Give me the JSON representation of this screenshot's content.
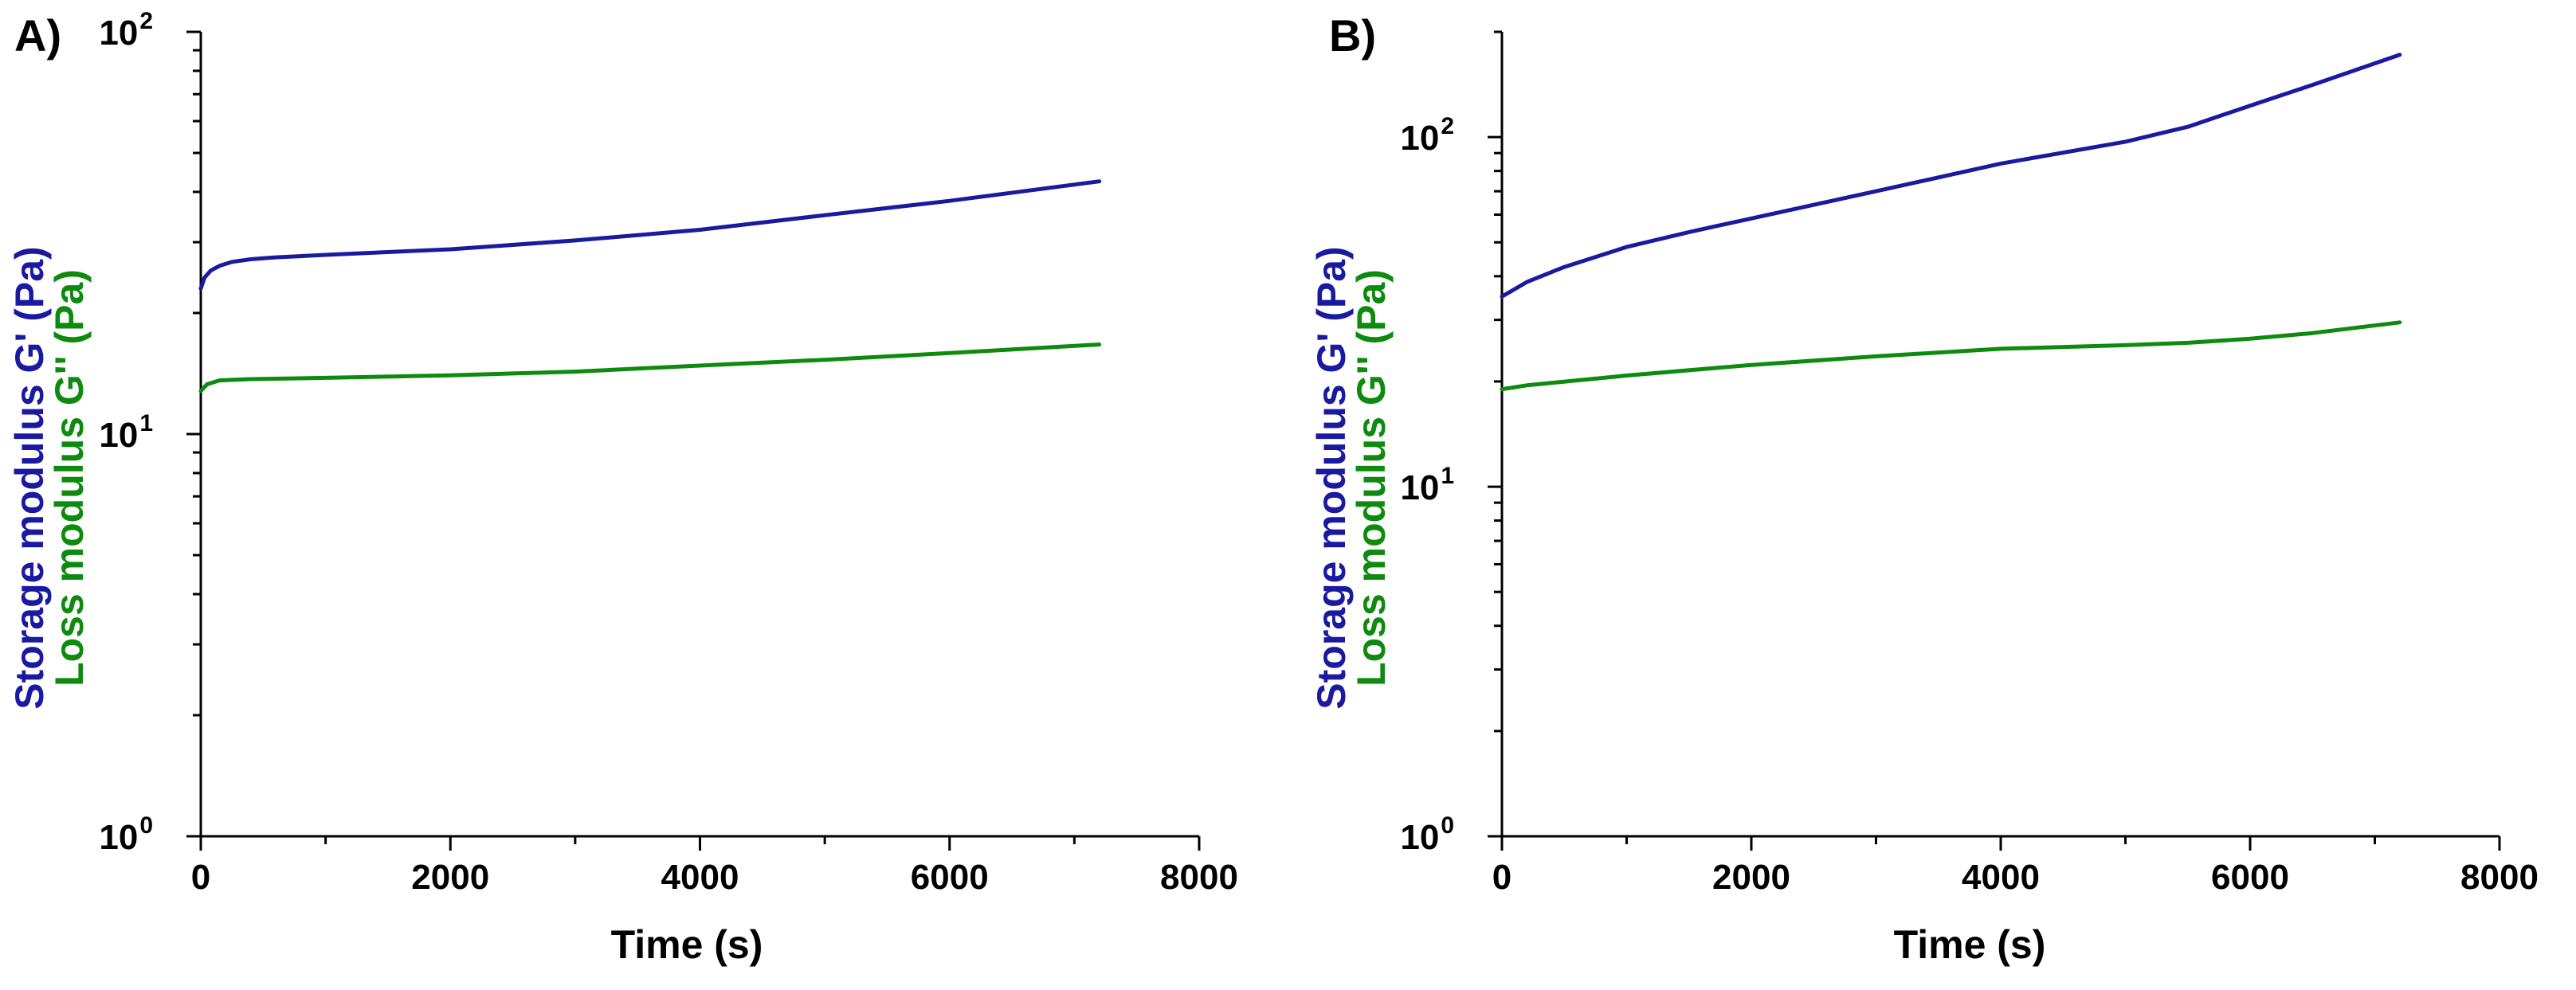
{
  "colors": {
    "storage": "#1a1aa0",
    "loss": "#0e8a0e"
  },
  "chart_data": [
    {
      "type": "line",
      "panel_label": "A)",
      "xlabel": "Time (s)",
      "ylabel_storage": "Storage modulus G' (Pa)",
      "ylabel_loss": "Loss modulus G'' (Pa)",
      "xlim": [
        0,
        8000
      ],
      "ylim": [
        1,
        100
      ],
      "yscale": "log",
      "x_ticks": [
        0,
        2000,
        4000,
        6000,
        8000
      ],
      "x_tick_labels": [
        "0",
        "2000",
        "4000",
        "6000",
        "8000"
      ],
      "y_ticks": [
        {
          "value": 1,
          "base": "10",
          "exp": "0"
        },
        {
          "value": 10,
          "base": "10",
          "exp": "1"
        },
        {
          "value": 100,
          "base": "10",
          "exp": "2"
        }
      ],
      "series": [
        {
          "name": "Storage modulus G'",
          "color_key": "storage",
          "x": [
            0,
            30,
            80,
            150,
            250,
            400,
            600,
            1000,
            2000,
            3000,
            4000,
            5000,
            6000,
            7200
          ],
          "y": [
            23,
            24.5,
            25.5,
            26.2,
            26.8,
            27.2,
            27.5,
            27.9,
            28.8,
            30.3,
            32.2,
            35,
            38,
            42.5
          ]
        },
        {
          "name": "Loss modulus G''",
          "color_key": "loss",
          "x": [
            0,
            50,
            150,
            400,
            1000,
            2000,
            3000,
            4000,
            5000,
            6000,
            7200
          ],
          "y": [
            12.8,
            13.3,
            13.6,
            13.7,
            13.8,
            14,
            14.3,
            14.8,
            15.3,
            15.9,
            16.7
          ]
        }
      ]
    },
    {
      "type": "line",
      "panel_label": "B)",
      "xlabel": "Time (s)",
      "ylabel_storage": "Storage modulus G' (Pa)",
      "ylabel_loss": "Loss modulus G'' (Pa)",
      "xlim": [
        0,
        8000
      ],
      "ylim": [
        1,
        200
      ],
      "yscale": "log",
      "x_ticks": [
        0,
        2000,
        4000,
        6000,
        8000
      ],
      "x_tick_labels": [
        "0",
        "2000",
        "4000",
        "6000",
        "8000"
      ],
      "y_ticks": [
        {
          "value": 1,
          "base": "10",
          "exp": "0"
        },
        {
          "value": 10,
          "base": "10",
          "exp": "1"
        },
        {
          "value": 100,
          "base": "10",
          "exp": "2"
        }
      ],
      "series": [
        {
          "name": "Storage modulus G'",
          "color_key": "storage",
          "x": [
            0,
            200,
            500,
            1000,
            1500,
            2000,
            3000,
            4000,
            5000,
            5500,
            6000,
            6500,
            7200
          ],
          "y": [
            35,
            38.5,
            42.5,
            48.5,
            53.5,
            58.5,
            70,
            84,
            97,
            107,
            123,
            141,
            172
          ]
        },
        {
          "name": "Loss modulus G''",
          "color_key": "loss",
          "x": [
            0,
            200,
            1000,
            2000,
            3000,
            4000,
            5000,
            5500,
            6000,
            6500,
            7200
          ],
          "y": [
            19,
            19.5,
            20.8,
            22.3,
            23.6,
            24.8,
            25.4,
            25.8,
            26.5,
            27.5,
            29.5
          ]
        }
      ]
    }
  ]
}
